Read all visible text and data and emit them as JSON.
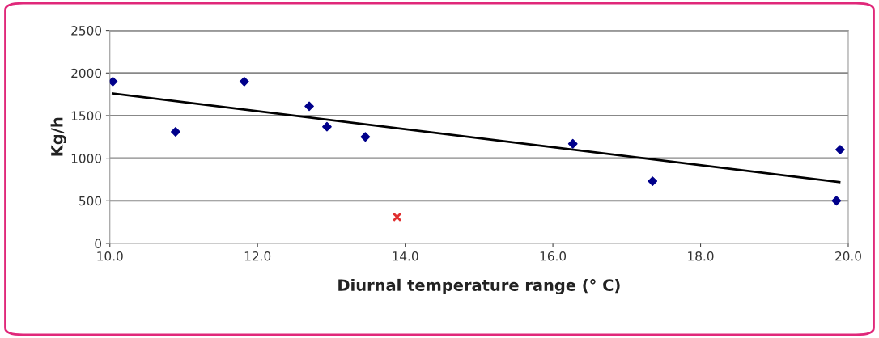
{
  "chart_data": {
    "type": "scatter",
    "xlabel": "Diurnal temperature range (° C)",
    "ylabel": "Kg/h",
    "series": [
      {
        "color": "#00008b",
        "marker": "diamond",
        "x": [
          10.04,
          10.89,
          11.82,
          12.7,
          12.94,
          13.46,
          16.27,
          17.35,
          19.89,
          19.84
        ],
        "values": [
          1900,
          1310,
          1900,
          1610,
          1370,
          1250,
          1170,
          730,
          1100,
          500
        ]
      },
      {
        "color": "#e03030",
        "marker": "cross",
        "x": [
          13.89
        ],
        "values": [
          310
        ]
      },
      {
        "type": "line",
        "color": "#000000",
        "marker": "none",
        "line_style": "solid",
        "x": [
          10.04,
          19.88
        ],
        "values": [
          1760,
          720
        ]
      }
    ],
    "xlim": [
      10,
      20
    ],
    "ylim": [
      0,
      2500
    ],
    "xticks": [
      {
        "value": 10,
        "label": "10.0"
      },
      {
        "value": 12,
        "label": "12.0"
      },
      {
        "value": 14,
        "label": "14.0"
      },
      {
        "value": 16,
        "label": "16.0"
      },
      {
        "value": 18,
        "label": "18.0"
      },
      {
        "value": 20,
        "label": "20.0"
      }
    ],
    "yticks": [
      0,
      500,
      1000,
      1500,
      2000,
      2500
    ],
    "grid": "y",
    "legend": false
  }
}
